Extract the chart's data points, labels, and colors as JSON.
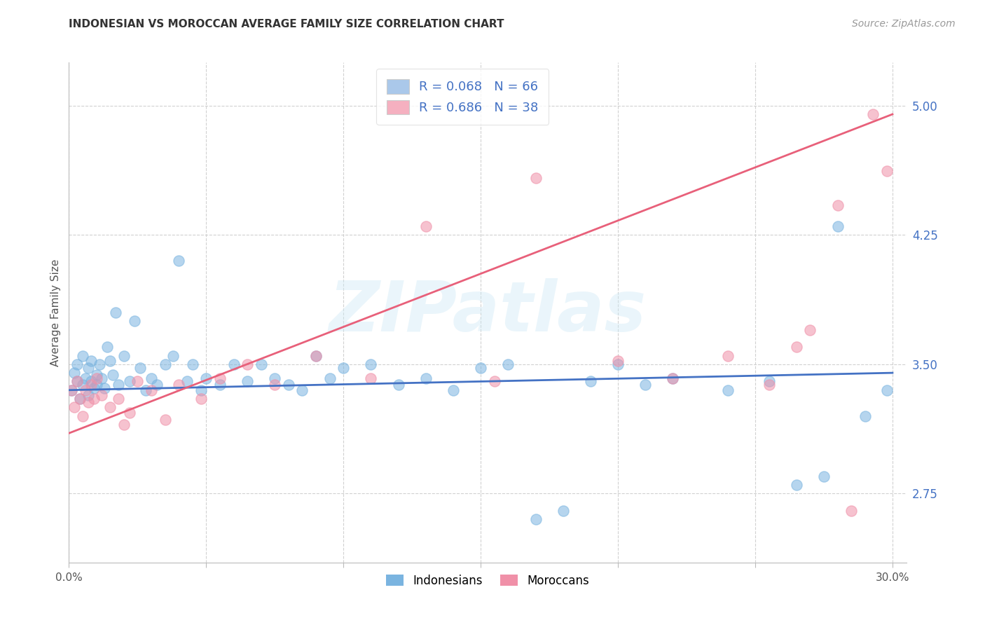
{
  "title": "INDONESIAN VS MOROCCAN AVERAGE FAMILY SIZE CORRELATION CHART",
  "source": "Source: ZipAtlas.com",
  "ylabel": "Average Family Size",
  "xlim": [
    0.0,
    0.305
  ],
  "ylim": [
    2.35,
    5.25
  ],
  "yticks": [
    2.75,
    3.5,
    4.25,
    5.0
  ],
  "watermark": "ZIPatlas",
  "legend1": [
    {
      "label": "R = 0.068   N = 66",
      "color": "#aac8ea"
    },
    {
      "label": "R = 0.686   N = 38",
      "color": "#f5b0c0"
    }
  ],
  "legend2_labels": [
    "Indonesians",
    "Moroccans"
  ],
  "indonesian_color": "#7ab4e0",
  "moroccan_color": "#f090a8",
  "line_indo_color": "#4472c4",
  "line_mor_color": "#e8607a",
  "indonesian_x": [
    0.001,
    0.002,
    0.003,
    0.003,
    0.004,
    0.005,
    0.005,
    0.006,
    0.007,
    0.007,
    0.008,
    0.008,
    0.009,
    0.01,
    0.01,
    0.011,
    0.012,
    0.013,
    0.014,
    0.015,
    0.016,
    0.017,
    0.018,
    0.02,
    0.022,
    0.024,
    0.026,
    0.028,
    0.03,
    0.032,
    0.035,
    0.038,
    0.04,
    0.043,
    0.045,
    0.048,
    0.05,
    0.055,
    0.06,
    0.065,
    0.07,
    0.075,
    0.08,
    0.085,
    0.09,
    0.095,
    0.1,
    0.11,
    0.12,
    0.13,
    0.14,
    0.15,
    0.16,
    0.17,
    0.18,
    0.19,
    0.2,
    0.21,
    0.22,
    0.24,
    0.255,
    0.265,
    0.275,
    0.28,
    0.29,
    0.298
  ],
  "indonesian_y": [
    3.35,
    3.45,
    3.5,
    3.4,
    3.3,
    3.55,
    3.38,
    3.42,
    3.48,
    3.32,
    3.4,
    3.52,
    3.36,
    3.44,
    3.38,
    3.5,
    3.42,
    3.36,
    3.6,
    3.52,
    3.44,
    3.8,
    3.38,
    3.55,
    3.4,
    3.75,
    3.48,
    3.35,
    3.42,
    3.38,
    3.5,
    3.55,
    4.1,
    3.4,
    3.5,
    3.35,
    3.42,
    3.38,
    3.5,
    3.4,
    3.5,
    3.42,
    3.38,
    3.35,
    3.55,
    3.42,
    3.48,
    3.5,
    3.38,
    3.42,
    3.35,
    3.48,
    3.5,
    2.6,
    2.65,
    3.4,
    3.5,
    3.38,
    3.42,
    3.35,
    3.4,
    2.8,
    2.85,
    4.3,
    3.2,
    3.35
  ],
  "moroccan_x": [
    0.001,
    0.002,
    0.003,
    0.004,
    0.005,
    0.006,
    0.007,
    0.008,
    0.009,
    0.01,
    0.012,
    0.015,
    0.018,
    0.02,
    0.022,
    0.025,
    0.03,
    0.035,
    0.04,
    0.048,
    0.055,
    0.065,
    0.075,
    0.09,
    0.11,
    0.13,
    0.155,
    0.17,
    0.2,
    0.22,
    0.24,
    0.255,
    0.265,
    0.27,
    0.28,
    0.285,
    0.293,
    0.298
  ],
  "moroccan_y": [
    3.35,
    3.25,
    3.4,
    3.3,
    3.2,
    3.35,
    3.28,
    3.38,
    3.3,
    3.42,
    3.32,
    3.25,
    3.3,
    3.15,
    3.22,
    3.4,
    3.35,
    3.18,
    3.38,
    3.3,
    3.42,
    3.5,
    3.38,
    3.55,
    3.42,
    4.3,
    3.4,
    4.58,
    3.52,
    3.42,
    3.55,
    3.38,
    3.6,
    3.7,
    4.42,
    2.65,
    4.95,
    4.62
  ],
  "background_color": "#ffffff",
  "grid_color": "#cccccc",
  "title_fontsize": 11,
  "ytick_color": "#4472c4",
  "source_color": "#999999"
}
